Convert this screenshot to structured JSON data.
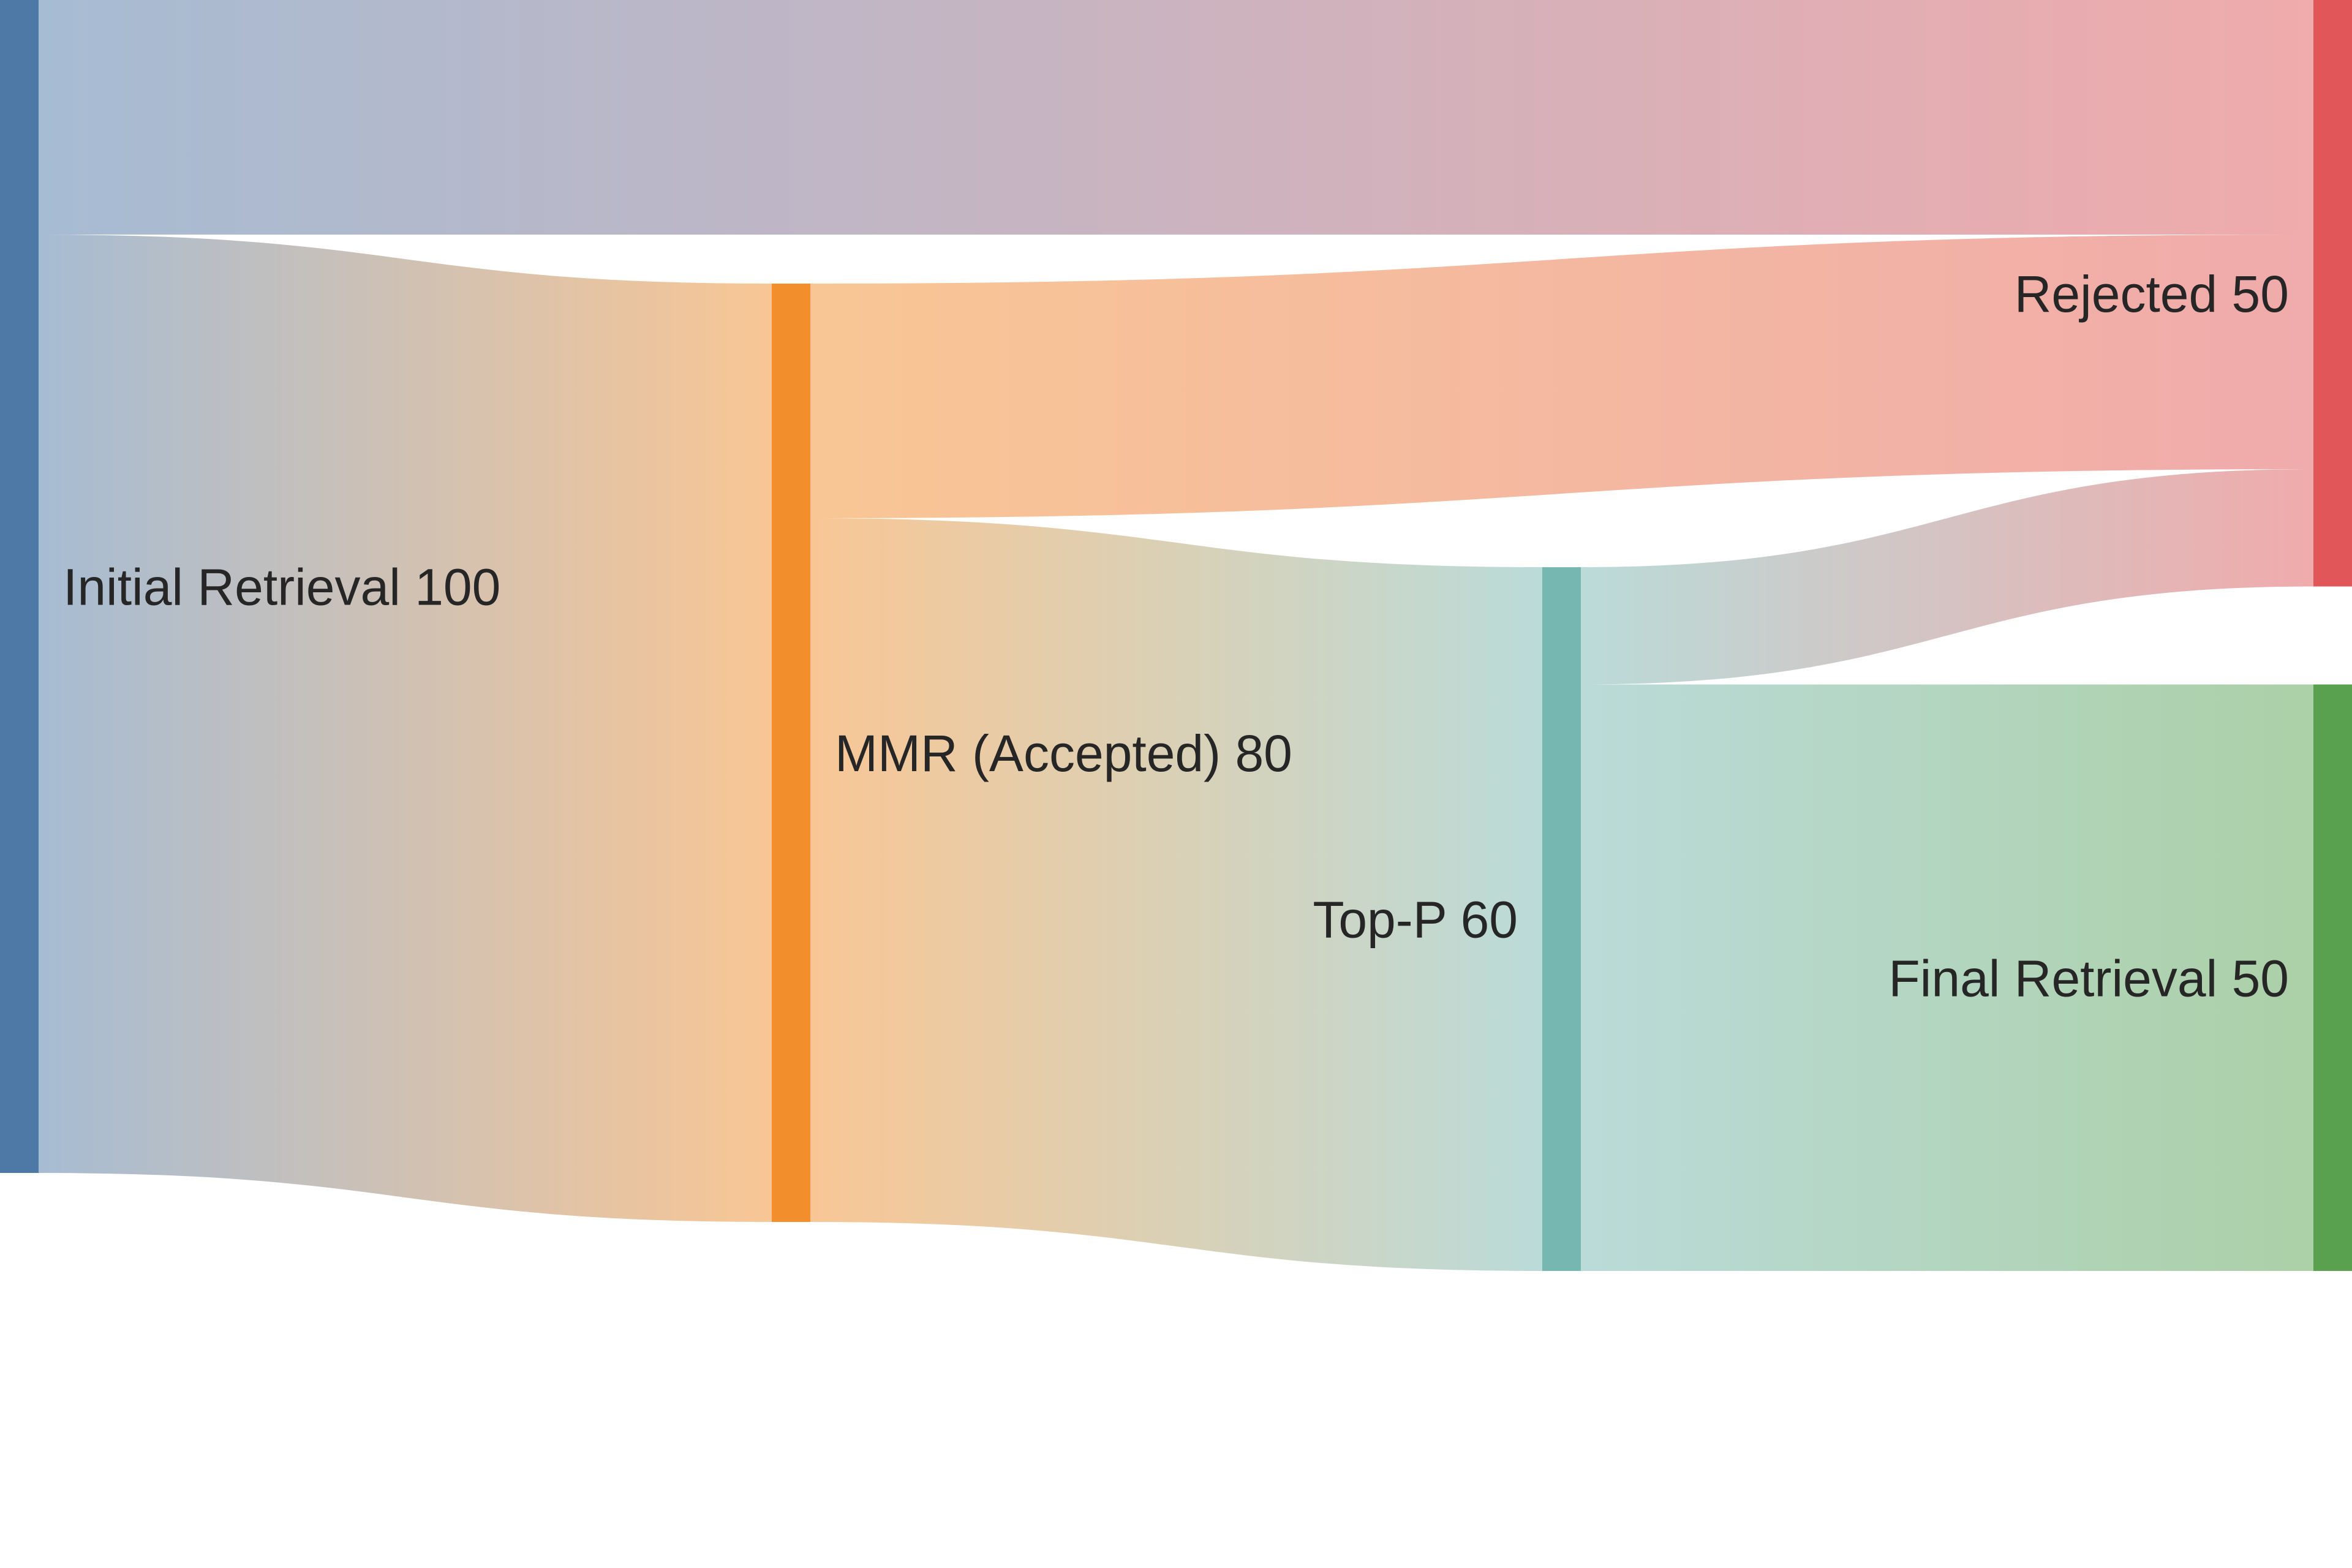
{
  "chart_data": {
    "type": "sankey",
    "nodes": [
      {
        "id": "initial",
        "label": "Initial Retrieval 100",
        "value": 100,
        "color": "#4e79a7",
        "column": 0,
        "label_side": "right"
      },
      {
        "id": "mmr",
        "label": "MMR (Accepted) 80",
        "value": 80,
        "color": "#f28e2b",
        "column": 1,
        "label_side": "right"
      },
      {
        "id": "topp",
        "label": "Top-P 60",
        "value": 60,
        "color": "#76b7b2",
        "column": 2,
        "label_side": "left"
      },
      {
        "id": "rejected",
        "label": "Rejected 50",
        "value": 50,
        "color": "#e15759",
        "column": 3,
        "label_side": "left"
      },
      {
        "id": "final",
        "label": "Final Retrieval 50",
        "value": 50,
        "color": "#59a14f",
        "column": 3,
        "label_side": "left"
      }
    ],
    "links": [
      {
        "source": "initial",
        "target": "rejected",
        "value": 20
      },
      {
        "source": "initial",
        "target": "mmr",
        "value": 80
      },
      {
        "source": "mmr",
        "target": "rejected",
        "value": 20
      },
      {
        "source": "mmr",
        "target": "topp",
        "value": 60
      },
      {
        "source": "topp",
        "target": "rejected",
        "value": 10
      },
      {
        "source": "topp",
        "target": "final",
        "value": 50
      }
    ]
  }
}
